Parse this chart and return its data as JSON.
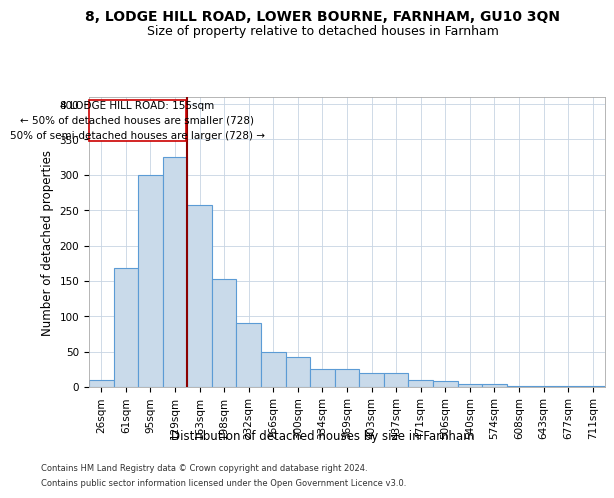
{
  "title": "8, LODGE HILL ROAD, LOWER BOURNE, FARNHAM, GU10 3QN",
  "subtitle": "Size of property relative to detached houses in Farnham",
  "xlabel": "Distribution of detached houses by size in Farnham",
  "ylabel": "Number of detached properties",
  "footnote1": "Contains HM Land Registry data © Crown copyright and database right 2024.",
  "footnote2": "Contains public sector information licensed under the Open Government Licence v3.0.",
  "annotation_title": "8 LODGE HILL ROAD: 155sqm",
  "annotation_line1": "← 50% of detached houses are smaller (728)",
  "annotation_line2": "50% of semi-detached houses are larger (728) →",
  "bar_labels": [
    "26sqm",
    "61sqm",
    "95sqm",
    "129sqm",
    "163sqm",
    "198sqm",
    "232sqm",
    "266sqm",
    "300sqm",
    "334sqm",
    "369sqm",
    "403sqm",
    "437sqm",
    "471sqm",
    "506sqm",
    "540sqm",
    "574sqm",
    "608sqm",
    "643sqm",
    "677sqm",
    "711sqm"
  ],
  "bar_values": [
    10,
    168,
    300,
    325,
    258,
    153,
    91,
    50,
    42,
    26,
    26,
    20,
    20,
    10,
    9,
    4,
    4,
    1,
    1,
    2,
    2
  ],
  "bar_color": "#c9daea",
  "bar_edge_color": "#5b9bd5",
  "vline_color": "#8b0000",
  "vline_position": 4,
  "ylim": [
    0,
    410
  ],
  "yticks": [
    0,
    50,
    100,
    150,
    200,
    250,
    300,
    350,
    400
  ],
  "background_color": "#ffffff",
  "grid_color": "#c8d4e3",
  "annotation_box_color": "#ffffff",
  "annotation_box_edge": "#cc0000",
  "title_fontsize": 10,
  "subtitle_fontsize": 9,
  "axis_label_fontsize": 8.5,
  "tick_fontsize": 7.5,
  "annotation_fontsize": 7.5
}
